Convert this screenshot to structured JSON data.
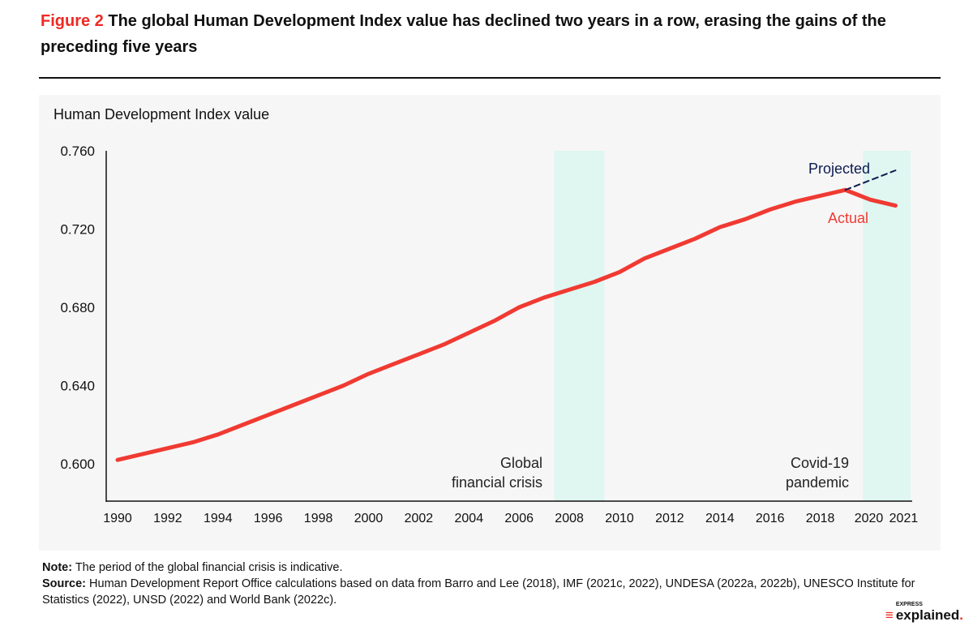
{
  "title": {
    "figure_label": "Figure 2",
    "text": "The global Human Development Index value has declined two years in a row, erasing the gains of the preceding five years"
  },
  "chart_data": {
    "type": "line",
    "ylabel": "Human Development Index value",
    "ylim": [
      0.6,
      0.76
    ],
    "yticks": [
      "0.760",
      "0.720",
      "0.680",
      "0.640",
      "0.600"
    ],
    "ytick_values": [
      0.76,
      0.72,
      0.68,
      0.64,
      0.6
    ],
    "xticks": [
      "1990",
      "1992",
      "1994",
      "1996",
      "1998",
      "2000",
      "2002",
      "2004",
      "2006",
      "2008",
      "2010",
      "2012",
      "2014",
      "2016",
      "2018",
      "2020",
      "2021"
    ],
    "grid": false,
    "series": [
      {
        "name": "Actual",
        "color": "#f03a32",
        "x": [
          1990,
          1991,
          1992,
          1993,
          1994,
          1995,
          1996,
          1997,
          1998,
          1999,
          2000,
          2001,
          2002,
          2003,
          2004,
          2005,
          2006,
          2007,
          2008,
          2009,
          2010,
          2011,
          2012,
          2013,
          2014,
          2015,
          2016,
          2017,
          2018,
          2019,
          2020,
          2021
        ],
        "values": [
          0.602,
          0.605,
          0.608,
          0.611,
          0.615,
          0.62,
          0.625,
          0.63,
          0.635,
          0.64,
          0.646,
          0.651,
          0.656,
          0.661,
          0.667,
          0.673,
          0.68,
          0.685,
          0.689,
          0.693,
          0.698,
          0.705,
          0.71,
          0.715,
          0.721,
          0.725,
          0.73,
          0.734,
          0.737,
          0.74,
          0.735,
          0.732
        ]
      },
      {
        "name": "Projected",
        "color": "#0d1b4f",
        "dashed": true,
        "x": [
          2019,
          2020,
          2021
        ],
        "values": [
          0.74,
          0.745,
          0.75
        ]
      }
    ],
    "shaded_periods": [
      {
        "label": "Global financial crisis",
        "start": 2007.4,
        "end": 2009.4
      },
      {
        "label": "Covid-19 pandemic",
        "start": 2019.7,
        "end": 2021.6
      }
    ],
    "annotations": {
      "crisis_line1": "Global",
      "crisis_line2": "financial crisis",
      "covid_line1": "Covid-19",
      "covid_line2": "pandemic"
    },
    "shade_color": "#dff6f1"
  },
  "notes": {
    "note_label": "Note:",
    "note": " The period of the global financial crisis is indicative.",
    "source_label": "Source:",
    "source": " Human Development Report Office calculations based on data from Barro and Lee (2018), IMF (2021c, 2022), UNDESA (2022a, 2022b), UNESCO Institute for Statistics (2022), UNSD (2022) and World Bank (2022c)."
  },
  "logo": {
    "small": "EXPRESS",
    "main": "explained"
  }
}
